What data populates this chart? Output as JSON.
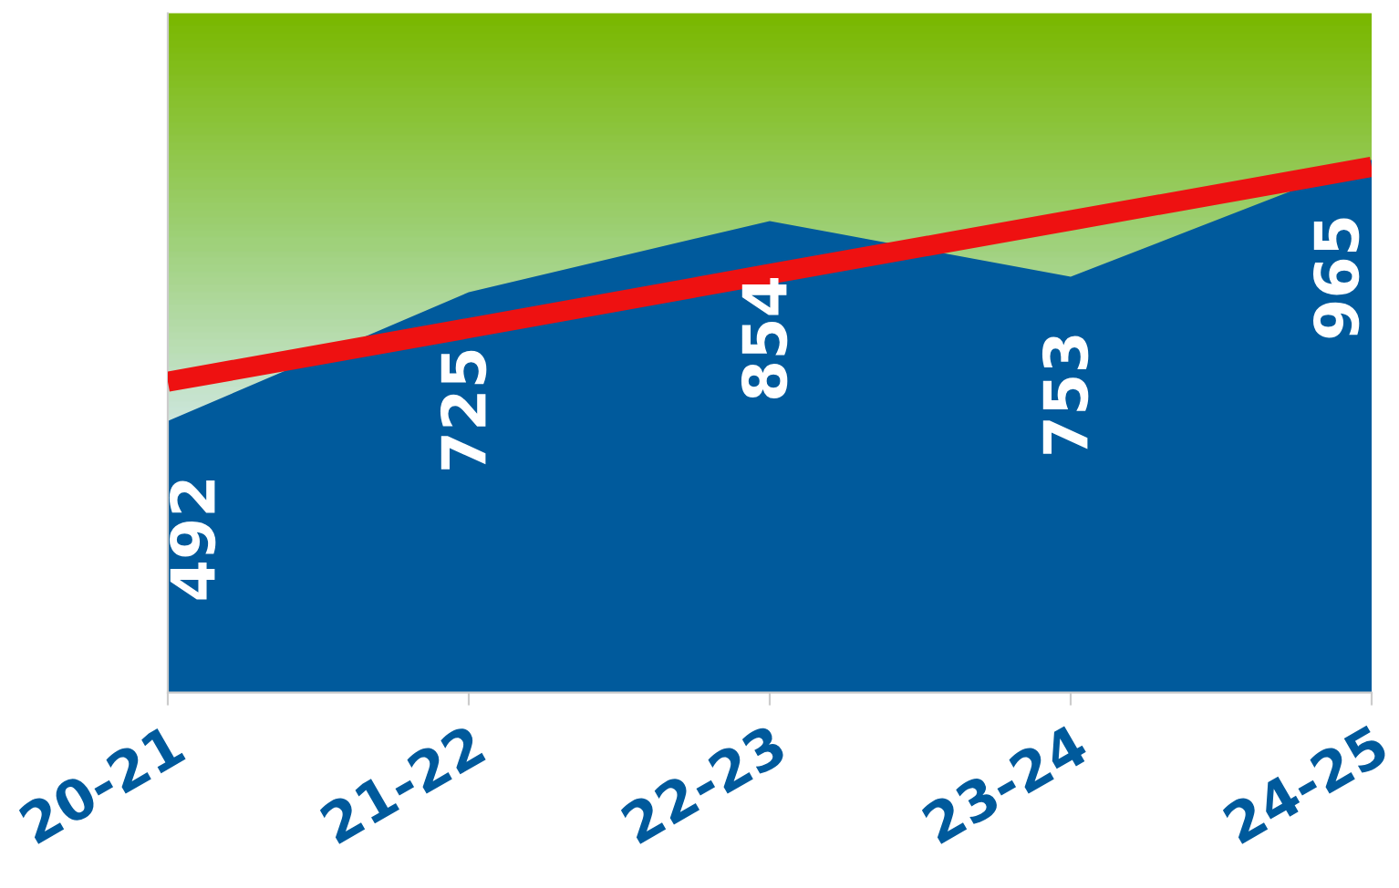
{
  "chart_data": {
    "type": "area",
    "categories": [
      "20-21",
      "21-22",
      "22-23",
      "23-24",
      "24-25"
    ],
    "ylim": [
      0,
      1230
    ],
    "tick_labels": "x",
    "grid": false,
    "series": [
      {
        "color": "#005a9c",
        "values": [
          492,
          725,
          854,
          753,
          965
        ],
        "data_labels": true
      },
      {
        "type": "line",
        "color": "#ee1111",
        "values": [
          563,
          660,
          758,
          855,
          952
        ]
      }
    ]
  }
}
